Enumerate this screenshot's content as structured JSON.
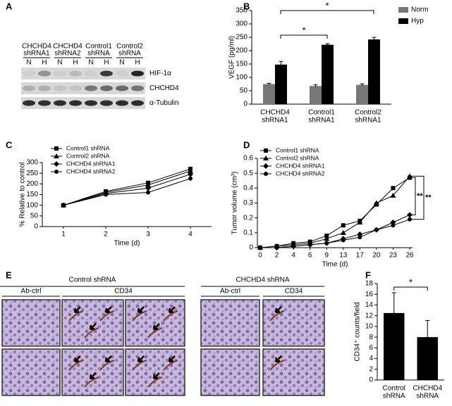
{
  "panel_labels": [
    "A",
    "B",
    "C",
    "D",
    "E",
    "F"
  ],
  "blot": {
    "groups": [
      [
        "CHCHD4",
        "shRNA1"
      ],
      [
        "CHCHD4",
        "shRNA2"
      ],
      [
        "Control1",
        "shRNA"
      ],
      [
        "Control2",
        "shRNA"
      ]
    ],
    "lanes": [
      "N",
      "H",
      "N",
      "H",
      "N",
      "H",
      "N",
      "H"
    ],
    "bands": [
      "HIF-1α",
      "CHCHD4",
      "α-Tubulin"
    ]
  },
  "chart_data": [
    {
      "type": "bar",
      "ylabel": "VEGF (pg/ml)",
      "categories": [
        [
          "CHCHD4",
          "shRNA1"
        ],
        [
          "Control1",
          "shRNA1"
        ],
        [
          "Control2",
          "shRNA1"
        ]
      ],
      "series": [
        {
          "name": "Norm",
          "color": "#777777",
          "values": [
            75,
            68,
            72
          ],
          "errors": [
            3,
            5,
            4
          ]
        },
        {
          "name": "Hyp",
          "color": "#000000",
          "values": [
            148,
            222,
            242
          ],
          "errors": [
            12,
            4,
            8
          ]
        }
      ],
      "ylim": [
        0,
        350
      ],
      "yticks": [
        0,
        50,
        100,
        150,
        200,
        250,
        300,
        350
      ],
      "annotations": [
        "*",
        "*"
      ]
    },
    {
      "type": "line",
      "ylabel": "% Relative to control",
      "xlabel": "Time (d)",
      "categories": [
        "1",
        "2",
        "3",
        "4"
      ],
      "series": [
        {
          "name": "Control1 shRNA",
          "color": "#000000",
          "values": [
            100,
            165,
            205,
            270
          ]
        },
        {
          "name": "Control2 shRNA",
          "color": "#000000",
          "values": [
            100,
            160,
            195,
            260
          ]
        },
        {
          "name": "CHCHD4 shRNA1",
          "color": "#000000",
          "values": [
            100,
            155,
            180,
            245
          ]
        },
        {
          "name": "CHCHD4 shRNA2",
          "color": "#000000",
          "values": [
            100,
            150,
            160,
            225
          ]
        }
      ],
      "ylim": [
        0,
        300
      ],
      "yticks": [
        0,
        50,
        100,
        150,
        200,
        250,
        300
      ]
    },
    {
      "type": "line",
      "ylabel": "Tumor volume (cm³)",
      "xlabel": "Time (d)",
      "categories": [
        "0",
        "2",
        "4",
        "6",
        "9",
        "13",
        "17",
        "20",
        "23",
        "26"
      ],
      "series": [
        {
          "name": "Control1 shRNA",
          "color": "#000000",
          "values": [
            0,
            0.01,
            0.03,
            0.04,
            0.08,
            0.15,
            0.18,
            0.29,
            0.4,
            0.47
          ]
        },
        {
          "name": "Control2 shRNA",
          "color": "#000000",
          "values": [
            0,
            0.01,
            0.02,
            0.03,
            0.06,
            0.1,
            0.17,
            0.3,
            0.35,
            0.48
          ]
        },
        {
          "name": "CHCHD4 shRNA1",
          "color": "#000000",
          "values": [
            0,
            0,
            0.01,
            0.02,
            0.03,
            0.06,
            0.09,
            0.12,
            0.17,
            0.22
          ]
        },
        {
          "name": "CHCHD4 shRNA2",
          "color": "#000000",
          "values": [
            0,
            0,
            0.01,
            0.02,
            0.03,
            0.05,
            0.07,
            0.12,
            0.15,
            0.19
          ]
        }
      ],
      "ylim": [
        0,
        0.6
      ],
      "yticks": [
        0,
        0.1,
        0.2,
        0.3,
        0.4,
        0.5,
        0.6
      ],
      "annotations": [
        "**",
        "**"
      ]
    },
    {
      "type": "bar",
      "ylabel": "CD34⁺ counts/field",
      "categories": [
        [
          "Control",
          "shRNA"
        ],
        [
          "CHCHD4",
          "shRNA"
        ]
      ],
      "values": [
        12.5,
        8
      ],
      "errors": [
        3.8,
        3.1
      ],
      "color": "#000000",
      "ylim": [
        0,
        18
      ],
      "yticks": [
        0,
        2,
        4,
        6,
        8,
        10,
        12,
        14,
        16,
        18
      ],
      "annotations": [
        "*"
      ]
    }
  ],
  "micrographs": {
    "groups": [
      "Control shRNA",
      "CHCHD4 shRNA"
    ],
    "columns": [
      "Ab-ctrl",
      "CD34",
      "Ab-ctrl",
      "CD34"
    ]
  }
}
